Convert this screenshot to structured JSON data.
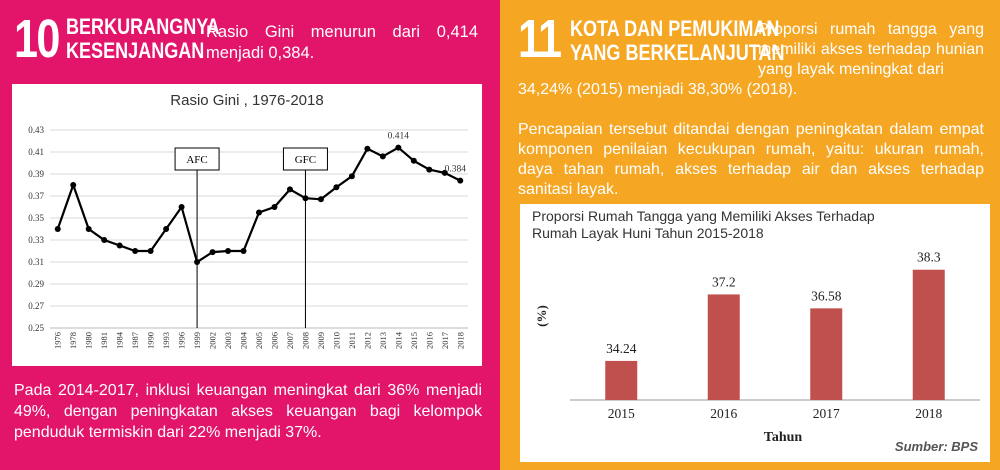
{
  "left": {
    "number": "10",
    "heading_line1": "BERKURANGNYA",
    "heading_line2": "KESENJANGAN",
    "intro": "Rasio Gini menurun dari 0,414 menjadi 0,384.",
    "footer": "Pada 2014-2017, inklusi keuangan meningkat dari 36% menjadi 49%, dengan peningkatan akses keuangan bagi kelompok penduduk termiskin dari 22% menjadi 37%.",
    "colors": {
      "background": "#e2156b",
      "line": "#000000"
    }
  },
  "right": {
    "number": "11",
    "heading_line1": "KOTA DAN PEMUKIMAN",
    "heading_line2": "YANG BERKELANJUTAN",
    "intro_a": "Proporsi rumah tangga yang memiliki akses terhadap hunian yang layak meningkat dari",
    "intro_b": "34,24% (2015) menjadi 38,30% (2018).",
    "paragraph": "Pencapaian tersebut ditandai dengan peningkatan dalam empat komponen penilaian kecukupan rumah, yaitu: ukuran rumah, daya tahan rumah, akses terhadap air dan akses terhadap sanitasi layak.",
    "source": "Sumber: BPS",
    "colors": {
      "background": "#f5a623",
      "bar": "#c0504d"
    }
  },
  "chart_data": [
    {
      "type": "line",
      "title": "Rasio Gini , 1976-2018",
      "x": [
        "1976",
        "1978",
        "1980",
        "1981",
        "1984",
        "1987",
        "1990",
        "1993",
        "1996",
        "1999",
        "2002",
        "2003",
        "2004",
        "2005",
        "2006",
        "2007",
        "2008",
        "2009",
        "2010",
        "2011",
        "2012",
        "2013",
        "2014",
        "2015",
        "2016",
        "2017",
        "2018"
      ],
      "values": [
        0.34,
        0.38,
        0.34,
        0.33,
        0.325,
        0.32,
        0.32,
        0.34,
        0.36,
        0.31,
        0.319,
        0.32,
        0.32,
        0.355,
        0.36,
        0.376,
        0.368,
        0.367,
        0.378,
        0.388,
        0.413,
        0.406,
        0.414,
        0.402,
        0.394,
        0.391,
        0.384
      ],
      "yticks": [
        "0.43",
        "0.41",
        "0.39",
        "0.37",
        "0.35",
        "0.33",
        "0.31",
        "0.29",
        "0.27",
        "0.25"
      ],
      "ylim": [
        0.25,
        0.43
      ],
      "annotations": [
        {
          "label": "AFC",
          "at": "1999"
        },
        {
          "label": "GFC",
          "at": "2008"
        }
      ],
      "data_labels": [
        {
          "at": "2014",
          "text": "0.414"
        },
        {
          "at": "2018",
          "text": "0.384"
        }
      ],
      "grid": true
    },
    {
      "type": "bar",
      "title": "Proporsi Rumah Tangga yang Memiliki Akses Terhadap Rumah Layak Huni Tahun 2015-2018",
      "categories": [
        "2015",
        "2016",
        "2017",
        "2018"
      ],
      "values": [
        34.24,
        37.2,
        36.58,
        38.3
      ],
      "labels": [
        "34.24",
        "37.2",
        "36.58",
        "38.3"
      ],
      "xlabel": "Tahun",
      "ylabel": "(%)",
      "ylim": [
        32.5,
        39
      ],
      "grid": false
    }
  ]
}
